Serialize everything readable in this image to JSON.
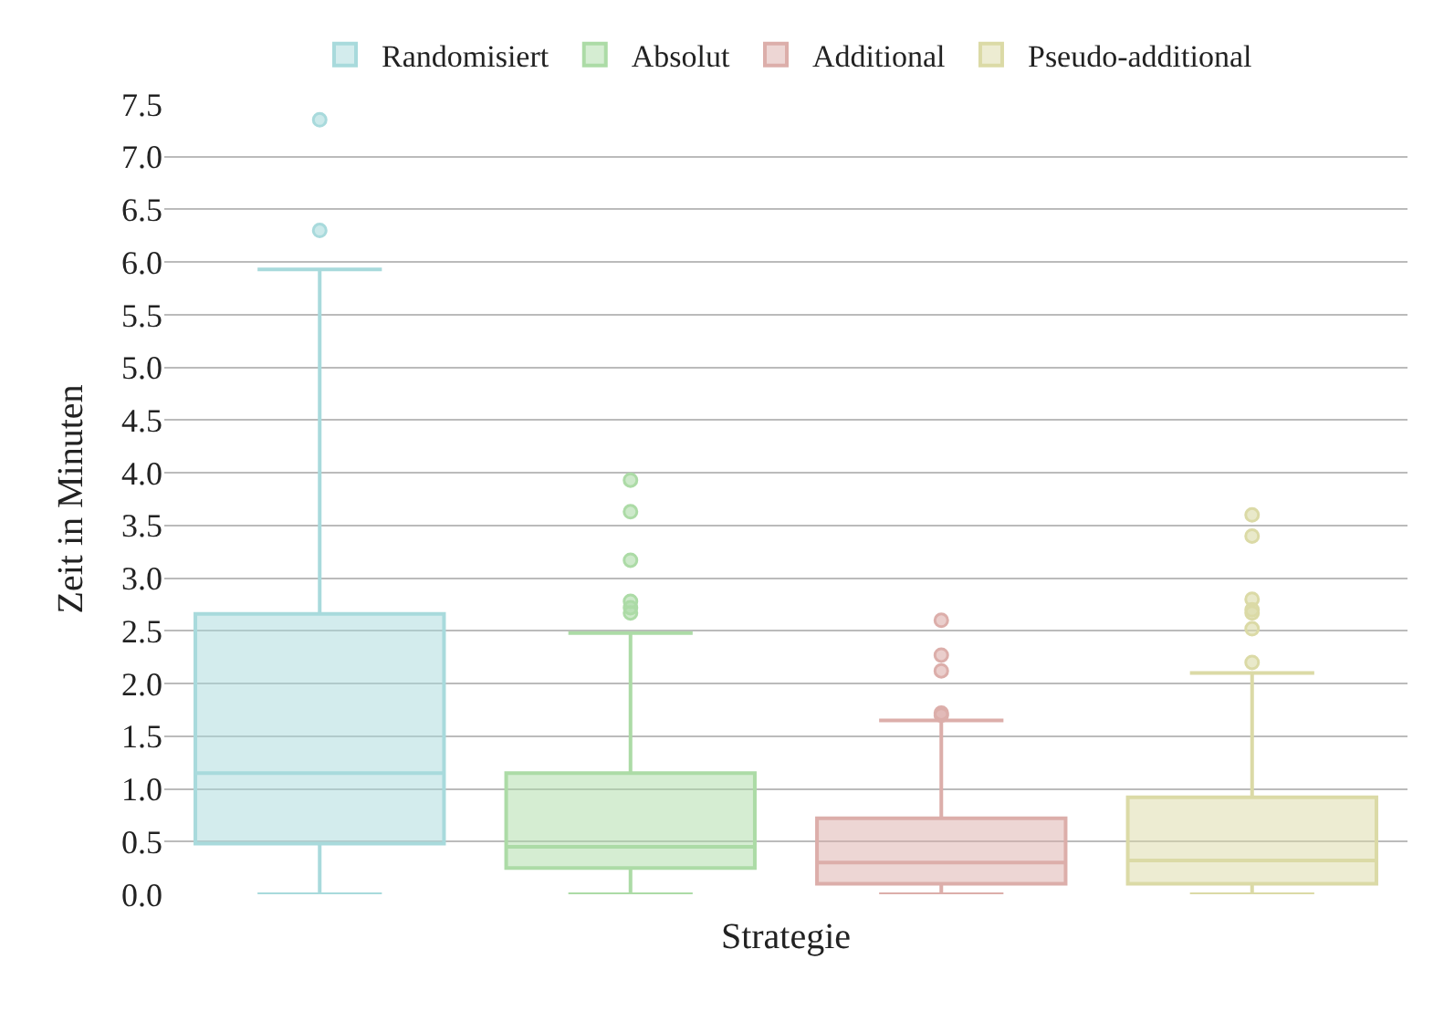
{
  "chart_data": {
    "type": "box",
    "xlabel": "Strategie",
    "ylabel": "Zeit in Minuten",
    "categories": [
      null,
      null,
      null,
      null
    ],
    "ylim": [
      0,
      7.5
    ],
    "yticks": [
      {
        "value": 0,
        "label": "0.0"
      },
      {
        "value": 0.5,
        "label": "0.5"
      },
      {
        "value": 1,
        "label": "1.0"
      },
      {
        "value": 1.5,
        "label": "1.5"
      },
      {
        "value": 2,
        "label": "2.0"
      },
      {
        "value": 2.5,
        "label": "2.5"
      },
      {
        "value": 3,
        "label": "3.0"
      },
      {
        "value": 3.5,
        "label": "3.5"
      },
      {
        "value": 4,
        "label": "4.0"
      },
      {
        "value": 4.5,
        "label": "4.5"
      },
      {
        "value": 5,
        "label": "5.0"
      },
      {
        "value": 5.5,
        "label": "5.5"
      },
      {
        "value": 6,
        "label": "6.0"
      },
      {
        "value": 6.5,
        "label": "6.5"
      },
      {
        "value": 7,
        "label": "7.0"
      },
      {
        "value": 7.5,
        "label": "7.5"
      }
    ],
    "grid": "y",
    "legend": "top",
    "series": [
      {
        "name": "Randomisiert",
        "color": "#a8dadc",
        "boxes": [
          {
            "low": 0,
            "q1": 0.48,
            "median": 1.15,
            "q3": 2.66,
            "high": 5.93,
            "outliers": [
              6.3,
              7.35
            ]
          },
          null,
          null,
          null
        ]
      },
      {
        "name": "Absolut",
        "color": "#acdba6",
        "boxes": [
          null,
          {
            "low": 0,
            "q1": 0.25,
            "median": 0.45,
            "q3": 1.15,
            "high": 2.48,
            "outliers": [
              2.67,
              2.72,
              2.78,
              3.17,
              3.63,
              3.93
            ]
          },
          null,
          null
        ]
      },
      {
        "name": "Additional",
        "color": "#dcaeaa",
        "boxes": [
          null,
          null,
          {
            "low": 0,
            "q1": 0.1,
            "median": 0.3,
            "q3": 0.72,
            "high": 1.65,
            "outliers": [
              1.7,
              1.72,
              2.12,
              2.27,
              2.6
            ]
          },
          null
        ]
      },
      {
        "name": "Pseudo-additional",
        "color": "#dbdaa6",
        "boxes": [
          null,
          null,
          null,
          {
            "low": 0,
            "q1": 0.1,
            "median": 0.32,
            "q3": 0.92,
            "high": 2.1,
            "outliers": [
              2.2,
              2.52,
              2.67,
              2.7,
              2.8,
              3.4,
              3.6
            ]
          }
        ]
      }
    ]
  }
}
